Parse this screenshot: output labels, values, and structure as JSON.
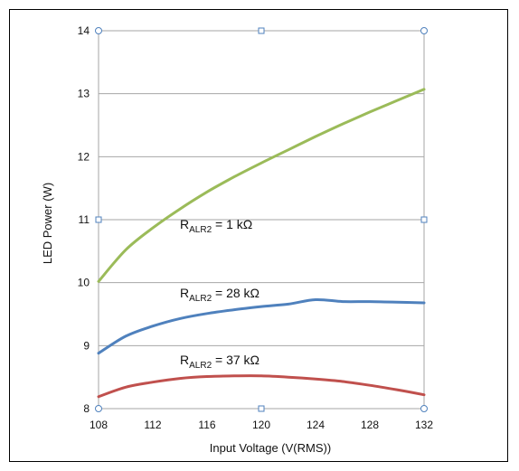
{
  "chart_data": {
    "type": "line",
    "title": "",
    "xlabel": "Input Voltage (V(RMS))",
    "ylabel": "LED Power (W)",
    "xlim": [
      108,
      132
    ],
    "ylim": [
      8,
      14
    ],
    "x_ticks": [
      108,
      112,
      116,
      120,
      124,
      128,
      132
    ],
    "y_ticks": [
      8,
      9,
      10,
      11,
      12,
      13,
      14
    ],
    "grid": "horizontal",
    "legend": "none",
    "x": [
      108,
      110,
      112,
      114,
      116,
      118,
      120,
      122,
      124,
      126,
      128,
      130,
      132
    ],
    "series": [
      {
        "label_main": "R",
        "label_sub": "ALR2",
        "label_value": " = 1 kΩ",
        "color": "#9bbb59",
        "values": [
          10.02,
          10.52,
          10.87,
          11.17,
          11.44,
          11.68,
          11.9,
          12.11,
          12.32,
          12.52,
          12.71,
          12.89,
          13.07
        ]
      },
      {
        "label_main": "R",
        "label_sub": "ALR2",
        "label_value": " = 28 kΩ",
        "color": "#4f81bd",
        "values": [
          8.88,
          9.15,
          9.31,
          9.43,
          9.51,
          9.57,
          9.62,
          9.66,
          9.73,
          9.7,
          9.7,
          9.69,
          9.68
        ]
      },
      {
        "label_main": "R",
        "label_sub": "ALR2",
        "label_value": " = 37 kΩ",
        "color": "#c0504d",
        "values": [
          8.19,
          8.34,
          8.42,
          8.48,
          8.51,
          8.52,
          8.52,
          8.5,
          8.47,
          8.43,
          8.37,
          8.3,
          8.22
        ]
      }
    ]
  }
}
